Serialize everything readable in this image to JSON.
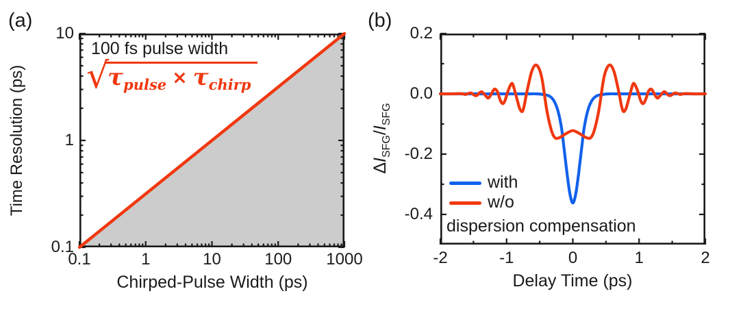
{
  "colors": {
    "red": "#f0380f",
    "blue": "#1161ec",
    "fill_gray": "#cccccc",
    "axis": "#1a1a1a"
  },
  "panel_a": {
    "tag": "(a)",
    "annotation": "100 fs pulse width",
    "formula": {
      "radical": "√",
      "tau_1": "τ",
      "sub_1": "pulse",
      "times": "×",
      "tau_2": "τ",
      "sub_2": "chirp"
    },
    "x_axis": {
      "title": "Chirped-Pulse Width (ps)",
      "tick_labels": [
        "0.1",
        "1",
        "10",
        "100",
        "1000"
      ]
    },
    "y_axis": {
      "title": "Time Resolution (ps)",
      "tick_labels": [
        "10",
        "1",
        "0.1"
      ]
    }
  },
  "panel_b": {
    "tag": "(b)",
    "x_axis": {
      "title": "Delay Time (ps)",
      "tick_labels": [
        "-2",
        "-1",
        "0",
        "1",
        "2"
      ]
    },
    "y_axis": {
      "title_parts": {
        "delta": "Δ",
        "i1": "I",
        "sub1": "SFG",
        "slash": "/",
        "i2": "I",
        "sub2": "SFG"
      },
      "tick_labels": [
        "0.2",
        "0.0",
        "-0.2",
        "-0.4"
      ]
    },
    "legend": {
      "items": [
        {
          "label": "with"
        },
        {
          "label": "w/o"
        }
      ],
      "note": "dispersion compensation"
    }
  },
  "chart_data": [
    {
      "id": "panel_a",
      "type": "line",
      "title": "",
      "xlabel": "Chirped-Pulse Width (ps)",
      "ylabel": "Time Resolution (ps)",
      "xscale": "log",
      "yscale": "log",
      "xlim": [
        0.1,
        1000
      ],
      "ylim": [
        0.1,
        10
      ],
      "x_ticks": [
        0.1,
        1,
        10,
        100,
        1000
      ],
      "y_ticks": [
        0.1,
        1,
        10
      ],
      "grid": false,
      "annotation": "100 fs pulse width",
      "formula": "sqrt(tau_pulse × tau_chirp)",
      "series": [
        {
          "name": "time-resolution-sqrt-law",
          "color": "red",
          "width": 4.5,
          "fill_under": true,
          "smooth": false,
          "points": [
            [
              0.1,
              0.1
            ],
            [
              1000,
              10
            ]
          ]
        }
      ]
    },
    {
      "id": "panel_b",
      "type": "line",
      "title": "",
      "xlabel": "Delay Time (ps)",
      "ylabel": "ΔI_SFG/I_SFG",
      "xscale": "linear",
      "yscale": "linear",
      "xlim": [
        -2,
        2
      ],
      "ylim": [
        -0.5,
        0.2
      ],
      "x_ticks": [
        -2,
        -1,
        0,
        1,
        2
      ],
      "x_minor_ticks": [
        -1.5,
        -0.5,
        0.5,
        1.5
      ],
      "y_ticks": [
        0.2,
        0,
        -0.2,
        -0.4
      ],
      "y_minor_ticks": [
        0.1,
        -0.1,
        -0.3
      ],
      "grid": false,
      "legend_position": "lower-left",
      "series": [
        {
          "name": "with dispersion compensation",
          "color": "blue",
          "width": 4.2,
          "smooth": true,
          "points": [
            [
              -2,
              0
            ],
            [
              -1.5,
              0
            ],
            [
              -1.0,
              0
            ],
            [
              -0.7,
              0
            ],
            [
              -0.55,
              0
            ],
            [
              -0.45,
              -0.002
            ],
            [
              -0.35,
              -0.008
            ],
            [
              -0.28,
              -0.025
            ],
            [
              -0.22,
              -0.06
            ],
            [
              -0.17,
              -0.115
            ],
            [
              -0.13,
              -0.185
            ],
            [
              -0.09,
              -0.26
            ],
            [
              -0.05,
              -0.325
            ],
            [
              -0.02,
              -0.355
            ],
            [
              0,
              -0.362
            ],
            [
              0.02,
              -0.355
            ],
            [
              0.05,
              -0.325
            ],
            [
              0.09,
              -0.26
            ],
            [
              0.13,
              -0.185
            ],
            [
              0.17,
              -0.115
            ],
            [
              0.22,
              -0.06
            ],
            [
              0.28,
              -0.025
            ],
            [
              0.35,
              -0.008
            ],
            [
              0.45,
              -0.002
            ],
            [
              0.55,
              0
            ],
            [
              0.7,
              0
            ],
            [
              1.0,
              0
            ],
            [
              1.5,
              0
            ],
            [
              2,
              0
            ]
          ]
        },
        {
          "name": "w/o dispersion compensation",
          "color": "red",
          "width": 4.2,
          "smooth": true,
          "points": [
            [
              -2.0,
              0
            ],
            [
              -1.8,
              0
            ],
            [
              -1.72,
              0.001
            ],
            [
              -1.66,
              0
            ],
            [
              -1.62,
              -0.002
            ],
            [
              -1.58,
              0.001
            ],
            [
              -1.54,
              0.003
            ],
            [
              -1.51,
              -0.001
            ],
            [
              -1.47,
              -0.006
            ],
            [
              -1.44,
              -0.004
            ],
            [
              -1.41,
              0.003
            ],
            [
              -1.38,
              0.007
            ],
            [
              -1.35,
              0.002
            ],
            [
              -1.31,
              -0.008
            ],
            [
              -1.28,
              -0.014
            ],
            [
              -1.25,
              -0.008
            ],
            [
              -1.21,
              0.008
            ],
            [
              -1.18,
              0.016
            ],
            [
              -1.14,
              0.008
            ],
            [
              -1.11,
              -0.012
            ],
            [
              -1.08,
              -0.028
            ],
            [
              -1.05,
              -0.032
            ],
            [
              -1.02,
              -0.02
            ],
            [
              -0.99,
              0.002
            ],
            [
              -0.95,
              0.025
            ],
            [
              -0.92,
              0.035
            ],
            [
              -0.9,
              0.028
            ],
            [
              -0.87,
              0.005
            ],
            [
              -0.84,
              -0.02
            ],
            [
              -0.8,
              -0.05
            ],
            [
              -0.76,
              -0.058
            ],
            [
              -0.73,
              -0.035
            ],
            [
              -0.7,
              0
            ],
            [
              -0.66,
              0.04
            ],
            [
              -0.62,
              0.075
            ],
            [
              -0.57,
              0.095
            ],
            [
              -0.52,
              0.088
            ],
            [
              -0.47,
              0.055
            ],
            [
              -0.43,
              0
            ],
            [
              -0.4,
              -0.045
            ],
            [
              -0.36,
              -0.09
            ],
            [
              -0.31,
              -0.13
            ],
            [
              -0.26,
              -0.147
            ],
            [
              -0.2,
              -0.145
            ],
            [
              -0.14,
              -0.137
            ],
            [
              -0.07,
              -0.128
            ],
            [
              0,
              -0.122
            ],
            [
              0.07,
              -0.128
            ],
            [
              0.14,
              -0.137
            ],
            [
              0.2,
              -0.145
            ],
            [
              0.26,
              -0.147
            ],
            [
              0.31,
              -0.13
            ],
            [
              0.36,
              -0.09
            ],
            [
              0.4,
              -0.045
            ],
            [
              0.43,
              0
            ],
            [
              0.47,
              0.055
            ],
            [
              0.52,
              0.088
            ],
            [
              0.57,
              0.095
            ],
            [
              0.62,
              0.075
            ],
            [
              0.66,
              0.04
            ],
            [
              0.7,
              0
            ],
            [
              0.73,
              -0.035
            ],
            [
              0.76,
              -0.058
            ],
            [
              0.8,
              -0.05
            ],
            [
              0.84,
              -0.02
            ],
            [
              0.87,
              0.005
            ],
            [
              0.9,
              0.028
            ],
            [
              0.92,
              0.035
            ],
            [
              0.95,
              0.025
            ],
            [
              0.99,
              0.002
            ],
            [
              1.02,
              -0.02
            ],
            [
              1.05,
              -0.032
            ],
            [
              1.08,
              -0.028
            ],
            [
              1.11,
              -0.012
            ],
            [
              1.14,
              0.008
            ],
            [
              1.18,
              0.016
            ],
            [
              1.21,
              0.008
            ],
            [
              1.25,
              -0.008
            ],
            [
              1.28,
              -0.014
            ],
            [
              1.31,
              -0.008
            ],
            [
              1.35,
              0.002
            ],
            [
              1.38,
              0.007
            ],
            [
              1.41,
              0.003
            ],
            [
              1.44,
              -0.004
            ],
            [
              1.47,
              -0.006
            ],
            [
              1.51,
              -0.001
            ],
            [
              1.54,
              0.003
            ],
            [
              1.58,
              0.001
            ],
            [
              1.62,
              -0.002
            ],
            [
              1.66,
              0
            ],
            [
              1.72,
              0.001
            ],
            [
              1.8,
              0
            ],
            [
              2.0,
              0
            ]
          ]
        }
      ]
    }
  ]
}
